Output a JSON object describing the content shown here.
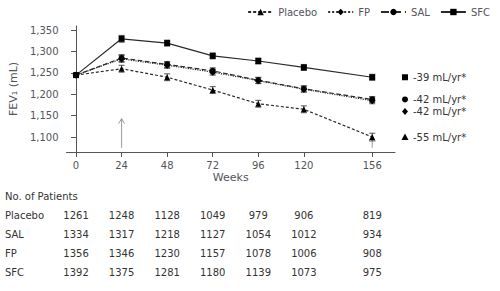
{
  "chart_data": {
    "type": "line",
    "xlabel": "Weeks",
    "ylabel": "FEV₁ (mL)",
    "x": [
      0,
      24,
      48,
      72,
      96,
      120,
      156
    ],
    "xlim": [
      -5,
      168
    ],
    "xticks": [
      0,
      24,
      48,
      72,
      96,
      120,
      156
    ],
    "ylim": [
      1065,
      1360
    ],
    "yticks": [
      1100,
      1150,
      1200,
      1250,
      1300,
      1350
    ],
    "grid": false,
    "legend": "upper right",
    "series": [
      {
        "name": "SFC",
        "color": "#2a2a2a",
        "marker": "square",
        "line_style": "solid",
        "values": [
          1245,
          1330,
          1320,
          1290,
          1278,
          1263,
          1240
        ],
        "errors": [
          0,
          8,
          7,
          7,
          7,
          7,
          7
        ],
        "annotation": "-39 mL/yr*"
      },
      {
        "name": "SAL",
        "color": "#2a2a2a",
        "marker": "circle",
        "line_style": "dashed",
        "values": [
          1245,
          1285,
          1270,
          1255,
          1233,
          1213,
          1188
        ],
        "errors": [
          0,
          8,
          7,
          7,
          7,
          7,
          7
        ],
        "annotation": "-42 mL/yr*"
      },
      {
        "name": "FP",
        "color": "#2a2a2a",
        "marker": "diamond",
        "line_style": "dotted",
        "values": [
          1245,
          1283,
          1268,
          1252,
          1232,
          1212,
          1185
        ],
        "errors": [
          0,
          8,
          7,
          7,
          7,
          7,
          7
        ],
        "annotation": "-42 mL/yr*"
      },
      {
        "name": "Placebo",
        "color": "#2a2a2a",
        "marker": "triangle",
        "line_style": "short-dashed",
        "values": [
          1245,
          1260,
          1240,
          1210,
          1178,
          1165,
          1100
        ],
        "errors": [
          0,
          8,
          8,
          8,
          8,
          8,
          9
        ],
        "annotation": "-55 mL/yr*"
      }
    ],
    "arrows": [
      {
        "x": 24,
        "from": 1075,
        "to": 1143
      },
      {
        "x": 156,
        "from": 1075,
        "to": 1102
      }
    ],
    "table": {
      "title": "No. of Patients",
      "rows": [
        {
          "name": "Placebo",
          "values": [
            1261,
            1248,
            1128,
            1049,
            979,
            906,
            819
          ]
        },
        {
          "name": "SAL",
          "values": [
            1334,
            1317,
            1218,
            1127,
            1054,
            1012,
            934
          ]
        },
        {
          "name": "FP",
          "values": [
            1356,
            1346,
            1230,
            1157,
            1078,
            1006,
            908
          ]
        },
        {
          "name": "SFC",
          "values": [
            1392,
            1375,
            1281,
            1180,
            1139,
            1073,
            975
          ]
        }
      ]
    }
  }
}
